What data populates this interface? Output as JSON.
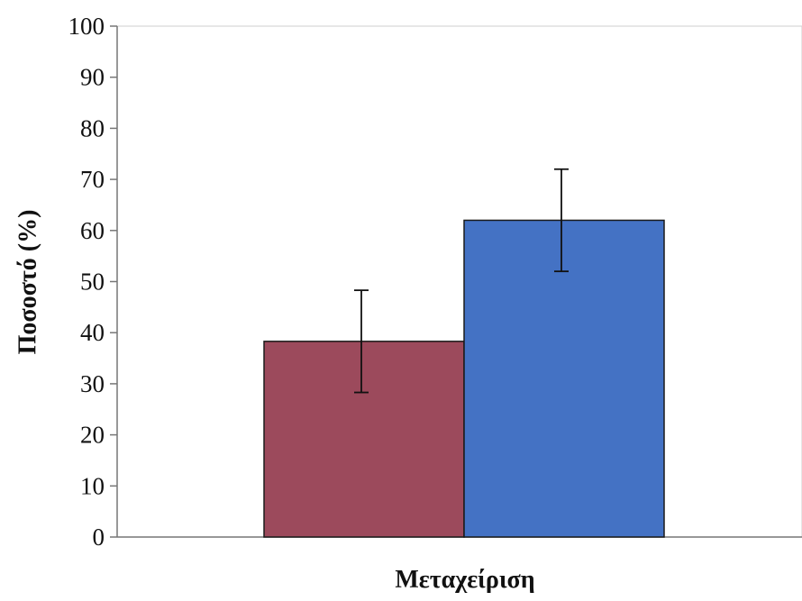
{
  "chart_data": {
    "type": "bar",
    "title": "",
    "xlabel": "Μεταχείριση",
    "ylabel": "Ποσοστό (%)",
    "ylim": [
      0,
      100
    ],
    "yticks": [
      "0",
      "10",
      "20",
      "30",
      "40",
      "50",
      "60",
      "70",
      "80",
      "90",
      "100"
    ],
    "grid": false,
    "legend": "none",
    "categories": [
      "",
      ""
    ],
    "values": [
      38.3,
      62.0
    ],
    "error": [
      10.0,
      10.0
    ],
    "colors": [
      "#9c4a5c",
      "#4472c4"
    ]
  }
}
